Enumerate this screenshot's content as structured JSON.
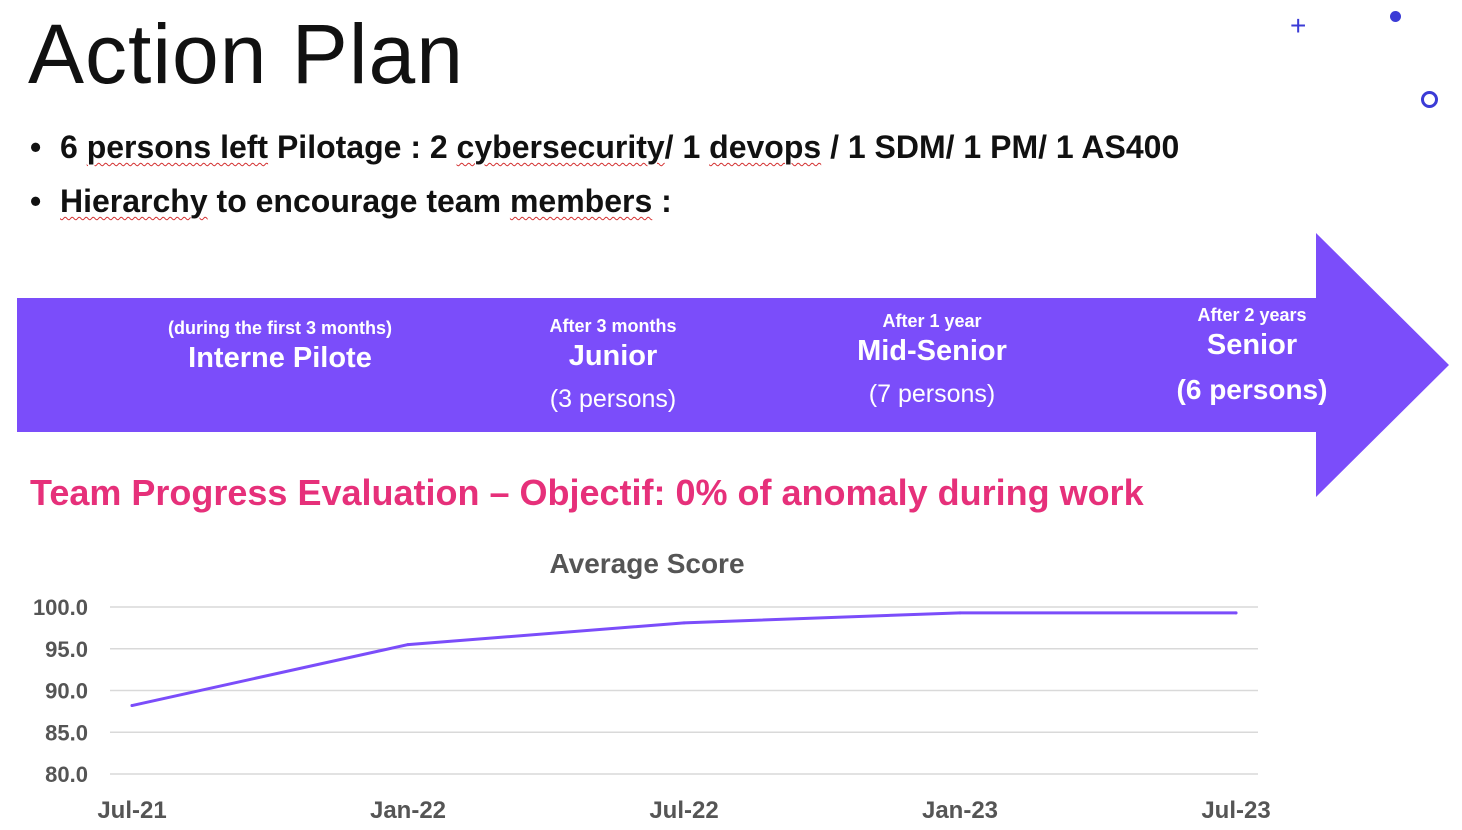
{
  "slide": {
    "title": "Action Plan",
    "bullets": {
      "b1": {
        "p1": "6 ",
        "p2": "persons left",
        "p3": " Pilotage : 2 ",
        "p4": "cybersecurity",
        "p5": "/ 1 ",
        "p6": "devops",
        "p7": " / 1 SDM/ 1 PM/ 1 AS400"
      },
      "b2": {
        "p1": "Hierarchy",
        "p2": " to encourage team ",
        "p3": "members",
        "p4": " :"
      }
    },
    "hierarchy": {
      "color": "#7b4dfa",
      "stages": [
        {
          "note": "(during the first 3 months)",
          "level": "Interne Pilote",
          "count": ""
        },
        {
          "note": "After 3 months",
          "level": "Junior",
          "count": "(3 persons)"
        },
        {
          "note": "After 1 year",
          "level": "Mid-Senior",
          "count": "(7 persons)"
        },
        {
          "note": "After 2 years",
          "level": "Senior",
          "count": "(6 persons)"
        }
      ]
    },
    "objective": "Team Progress Evaluation – Objectif: 0% of anomaly during work",
    "decorations": {
      "color": "#3b3bd6",
      "icons": [
        "plus-icon",
        "dot-icon",
        "ring-icon"
      ]
    }
  },
  "chart_data": {
    "type": "line",
    "title": "Average Score",
    "xlabel": "",
    "ylabel": "",
    "categories": [
      "Jul-21",
      "Jan-22",
      "Jul-22",
      "Jan-23",
      "Jul-23"
    ],
    "series": [
      {
        "values": [
          88.2,
          95.5,
          98.1,
          99.3,
          99.3
        ],
        "color": "#7b4dfa"
      }
    ],
    "ylim": [
      80,
      100
    ],
    "y_ticks": [
      "100.0",
      "95.0",
      "90.0",
      "85.0",
      "80.0"
    ],
    "grid": true,
    "legend": "none"
  }
}
